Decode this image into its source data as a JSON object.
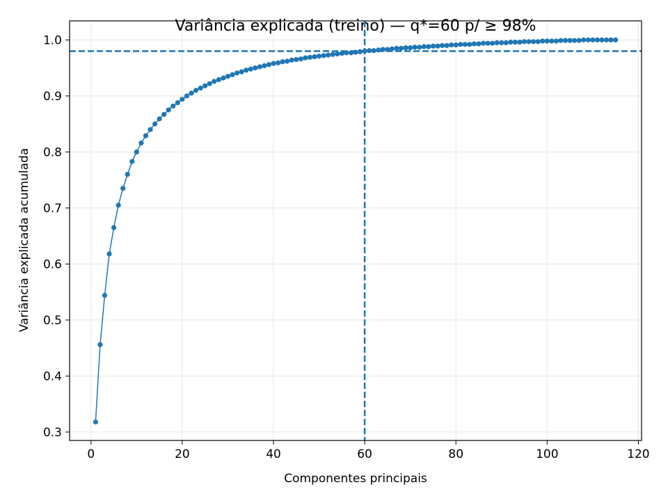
{
  "chart_data": {
    "type": "line",
    "title": "Variância explicada (treino) — q*=60 p/ ≥ 98%",
    "xlabel": "Componentes principais",
    "ylabel": "Variância explicada acumulada",
    "xlim": [
      -4.7,
      120.7
    ],
    "ylim": [
      0.285,
      1.034
    ],
    "xticks": [
      0,
      20,
      40,
      60,
      80,
      100,
      120
    ],
    "yticks": [
      0.3,
      0.4,
      0.5,
      0.6,
      0.7,
      0.8,
      0.9,
      1.0
    ],
    "xtick_labels": [
      "0",
      "20",
      "40",
      "60",
      "80",
      "100",
      "120"
    ],
    "ytick_labels": [
      "0.3",
      "0.4",
      "0.5",
      "0.6",
      "0.7",
      "0.8",
      "0.9",
      "1.0"
    ],
    "grid": true,
    "series": [
      {
        "color": "#1f77b4",
        "x": [
          1,
          2,
          3,
          4,
          5,
          6,
          7,
          8,
          9,
          10,
          11,
          12,
          13,
          14,
          15,
          16,
          17,
          18,
          19,
          20,
          21,
          22,
          23,
          24,
          25,
          26,
          27,
          28,
          29,
          30,
          31,
          32,
          33,
          34,
          35,
          36,
          37,
          38,
          39,
          40,
          41,
          42,
          43,
          44,
          45,
          46,
          47,
          48,
          49,
          50,
          51,
          52,
          53,
          54,
          55,
          56,
          57,
          58,
          59,
          60,
          61,
          62,
          63,
          64,
          65,
          66,
          67,
          68,
          69,
          70,
          71,
          72,
          73,
          74,
          75,
          76,
          77,
          78,
          79,
          80,
          81,
          82,
          83,
          84,
          85,
          86,
          87,
          88,
          89,
          90,
          91,
          92,
          93,
          94,
          95,
          96,
          97,
          98,
          99,
          100,
          101,
          102,
          103,
          104,
          105,
          106,
          107,
          108,
          109,
          110,
          111,
          112,
          113,
          114,
          115
        ],
        "y": [
          0.318,
          0.456,
          0.544,
          0.618,
          0.665,
          0.705,
          0.735,
          0.76,
          0.783,
          0.8,
          0.816,
          0.829,
          0.84,
          0.85,
          0.859,
          0.867,
          0.875,
          0.882,
          0.888,
          0.894,
          0.9,
          0.905,
          0.91,
          0.914,
          0.918,
          0.922,
          0.926,
          0.929,
          0.932,
          0.935,
          0.938,
          0.941,
          0.943,
          0.946,
          0.948,
          0.95,
          0.952,
          0.954,
          0.956,
          0.958,
          0.959,
          0.961,
          0.962,
          0.964,
          0.965,
          0.966,
          0.968,
          0.969,
          0.97,
          0.971,
          0.972,
          0.973,
          0.974,
          0.975,
          0.976,
          0.977,
          0.977,
          0.978,
          0.979,
          0.98,
          0.981,
          0.981,
          0.982,
          0.983,
          0.983,
          0.984,
          0.985,
          0.985,
          0.986,
          0.986,
          0.987,
          0.987,
          0.988,
          0.988,
          0.989,
          0.989,
          0.99,
          0.99,
          0.991,
          0.991,
          0.992,
          0.992,
          0.992,
          0.993,
          0.993,
          0.994,
          0.994,
          0.994,
          0.995,
          0.995,
          0.995,
          0.996,
          0.996,
          0.996,
          0.997,
          0.997,
          0.997,
          0.997,
          0.998,
          0.998,
          0.998,
          0.998,
          0.999,
          0.999,
          0.999,
          0.999,
          0.999,
          1.0,
          1.0,
          1.0,
          1.0,
          1.0,
          1.0,
          1.0,
          1.0
        ]
      }
    ],
    "reference_lines": [
      {
        "orientation": "horizontal",
        "value": 0.98,
        "style": "dashed",
        "color": "#1f77b4"
      },
      {
        "orientation": "vertical",
        "value": 60,
        "style": "dashed",
        "color": "#1f77b4"
      }
    ]
  }
}
